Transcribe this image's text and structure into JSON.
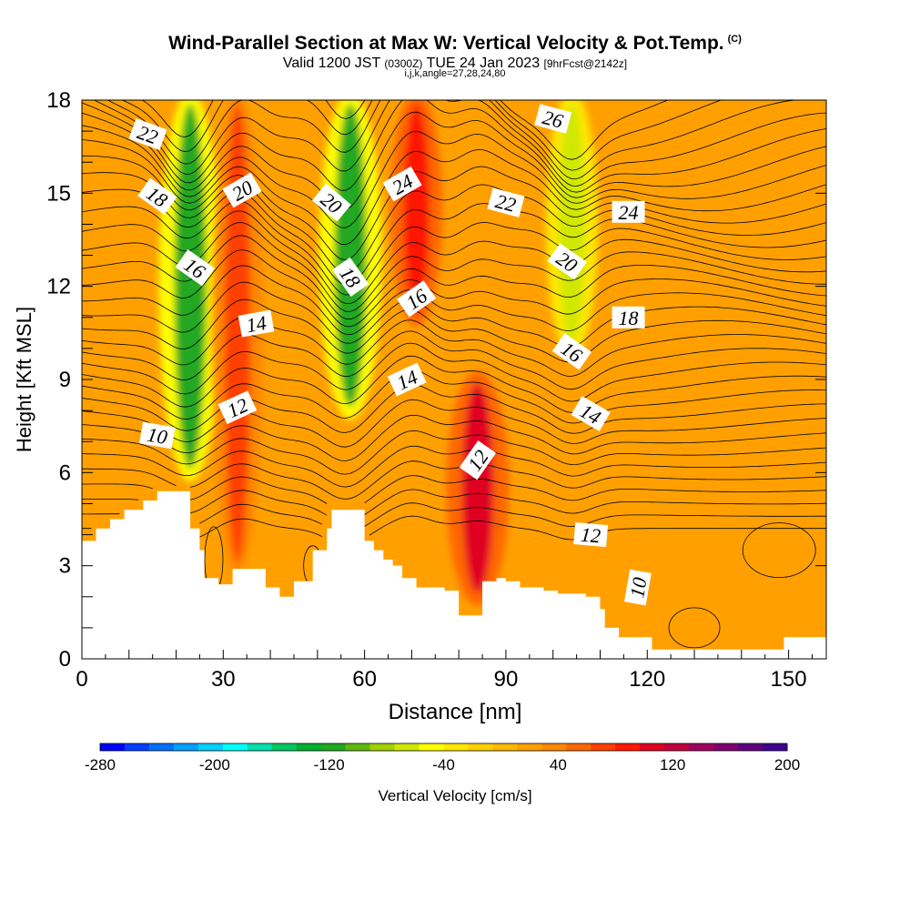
{
  "title": {
    "line1": "Wind-Parallel Section at Max W: Vertical Velocity & Pot.Temp.",
    "line1_mark": "(C)",
    "line2_valid": "Valid 1200 JST",
    "line2_utc": "(0300Z)",
    "line2_date": "TUE 24 Jan 2023",
    "line2_fcst": "[9hrFcst@2142z]",
    "line3": "i,j,k,angle=27,28,24,80"
  },
  "chart_data": {
    "type": "heatmap",
    "xlabel": "Distance [nm]",
    "ylabel": "Height [Kft MSL]",
    "xlim": [
      0,
      158
    ],
    "ylim": [
      0,
      18
    ],
    "xticks": [
      0,
      30,
      60,
      90,
      120,
      150
    ],
    "yticks": [
      0,
      3,
      6,
      9,
      12,
      15,
      18
    ],
    "grid": false,
    "colorbar": {
      "label": "Vertical Velocity [cm/s]",
      "tick_labels": [
        "-280",
        "-200",
        "-120",
        "-40",
        "40",
        "120",
        "200"
      ],
      "tick_values": [
        -280,
        -200,
        -120,
        -40,
        40,
        120,
        200
      ],
      "colors": [
        "#0000ff",
        "#0040ff",
        "#0070ff",
        "#00a0ff",
        "#00d0ff",
        "#00ffff",
        "#00e0b0",
        "#00c860",
        "#00b030",
        "#20a820",
        "#60b810",
        "#a0d000",
        "#d0e800",
        "#ffff00",
        "#ffe800",
        "#ffd000",
        "#ffb800",
        "#ffa000",
        "#ff8800",
        "#ff6800",
        "#ff4000",
        "#ff1800",
        "#e00020",
        "#c00040",
        "#a00060",
        "#800070",
        "#600080",
        "#400090"
      ]
    },
    "terrain_kft": [
      [
        0,
        3.8
      ],
      [
        3,
        4.2
      ],
      [
        6,
        4.5
      ],
      [
        9,
        4.8
      ],
      [
        13,
        5.1
      ],
      [
        16,
        5.4
      ],
      [
        20,
        5.4
      ],
      [
        23,
        4.2
      ],
      [
        25,
        3.5
      ],
      [
        26,
        2.6
      ],
      [
        29,
        2.4
      ],
      [
        32,
        2.9
      ],
      [
        39,
        2.3
      ],
      [
        42,
        2.0
      ],
      [
        45,
        2.5
      ],
      [
        49,
        3.5
      ],
      [
        52,
        4.2
      ],
      [
        53,
        4.8
      ],
      [
        58,
        4.8
      ],
      [
        60,
        3.8
      ],
      [
        62,
        3.5
      ],
      [
        64,
        3.2
      ],
      [
        66,
        3.0
      ],
      [
        68,
        2.6
      ],
      [
        71,
        2.3
      ],
      [
        77,
        2.2
      ],
      [
        80,
        1.4
      ],
      [
        84,
        1.4
      ],
      [
        85,
        2.5
      ],
      [
        88,
        2.6
      ],
      [
        90,
        2.5
      ],
      [
        93,
        2.3
      ],
      [
        98,
        2.2
      ],
      [
        101,
        2.1
      ],
      [
        107,
        2.0
      ],
      [
        110,
        1.6
      ],
      [
        111,
        1.0
      ],
      [
        114,
        0.7
      ],
      [
        118,
        0.7
      ],
      [
        121,
        0.3
      ],
      [
        141,
        0.3
      ],
      [
        144,
        0.3
      ],
      [
        149,
        0.7
      ],
      [
        158,
        0.7
      ]
    ],
    "velocity_features_cm_s": [
      {
        "x": 23,
        "ymin": 6,
        "ymax": 18,
        "value": -110
      },
      {
        "x": 33,
        "ymin": 3,
        "ymax": 18,
        "value": 75
      },
      {
        "x": 57,
        "ymin": 8,
        "ymax": 18,
        "value": -120
      },
      {
        "x": 71,
        "ymin": 11,
        "ymax": 18,
        "value": 95
      },
      {
        "x": 84,
        "ymin": 2,
        "ymax": 9,
        "value": 105
      },
      {
        "x": 104,
        "ymin": 10,
        "ymax": 18,
        "value": -70
      }
    ],
    "theta_contour_labels": [
      {
        "text": "22",
        "x": 14,
        "y": 16.9,
        "angle": 20
      },
      {
        "text": "18",
        "x": 16,
        "y": 14.9,
        "angle": 35
      },
      {
        "text": "20",
        "x": 34,
        "y": 15.1,
        "angle": -30
      },
      {
        "text": "20",
        "x": 53,
        "y": 14.7,
        "angle": 40
      },
      {
        "text": "24",
        "x": 68,
        "y": 15.3,
        "angle": -30
      },
      {
        "text": "26",
        "x": 100,
        "y": 17.4,
        "angle": 15
      },
      {
        "text": "22",
        "x": 90,
        "y": 14.7,
        "angle": 15
      },
      {
        "text": "24",
        "x": 116,
        "y": 14.4,
        "angle": 0
      },
      {
        "text": "16",
        "x": 24,
        "y": 12.6,
        "angle": 35
      },
      {
        "text": "18",
        "x": 57,
        "y": 12.3,
        "angle": 55
      },
      {
        "text": "20",
        "x": 103,
        "y": 12.8,
        "angle": 35
      },
      {
        "text": "16",
        "x": 71,
        "y": 11.6,
        "angle": -35
      },
      {
        "text": "18",
        "x": 116,
        "y": 11.0,
        "angle": 0
      },
      {
        "text": "14",
        "x": 37,
        "y": 10.8,
        "angle": -10
      },
      {
        "text": "16",
        "x": 104,
        "y": 9.9,
        "angle": 35
      },
      {
        "text": "14",
        "x": 69,
        "y": 9.0,
        "angle": -25
      },
      {
        "text": "12",
        "x": 33,
        "y": 8.1,
        "angle": -25
      },
      {
        "text": "14",
        "x": 108,
        "y": 7.9,
        "angle": 30
      },
      {
        "text": "10",
        "x": 16,
        "y": 7.2,
        "angle": 10
      },
      {
        "text": "12",
        "x": 84,
        "y": 6.4,
        "angle": -55
      },
      {
        "text": "12",
        "x": 108,
        "y": 4.0,
        "angle": 5
      },
      {
        "text": "10",
        "x": 118,
        "y": 2.3,
        "angle": -80
      }
    ]
  }
}
